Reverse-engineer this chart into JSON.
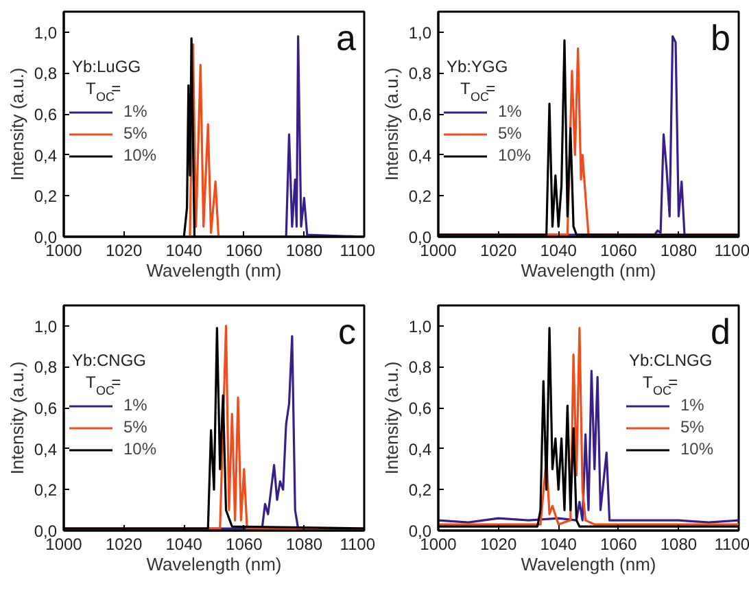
{
  "chart_data": [
    {
      "type": "line",
      "xlabel": "Wavelength (nm)",
      "ylabel": "Intensity (a.u.)",
      "legend_title": "Yb:LuGG\nT$_{OC}$=",
      "annotations": [
        "a"
      ],
      "legend": "left",
      "grid": false,
      "xlim": [
        1000,
        1100
      ],
      "xticks": [
        1000,
        1020,
        1040,
        1060,
        1080,
        1100
      ],
      "ylim": [
        0,
        1.1
      ],
      "yticks": [
        {
          "value": 0,
          "label": "0,0"
        },
        {
          "value": 0.2,
          "label": "0,2"
        },
        {
          "value": 0.4,
          "label": "0,4"
        },
        {
          "value": 0.6,
          "label": "0,6"
        },
        {
          "value": 0.8,
          "label": "0,8"
        },
        {
          "value": 1.0,
          "label": "1,0"
        }
      ],
      "series": [
        {
          "name": "1%",
          "color": "#3a1e8a",
          "x": [
            1000,
            1074,
            1075,
            1076,
            1077,
            1077.5,
            1078,
            1079,
            1080,
            1081,
            1100
          ],
          "values": [
            0,
            0,
            0.5,
            0.05,
            0.28,
            0.05,
            0.98,
            0.05,
            0.19,
            0.01,
            0
          ]
        },
        {
          "name": "5%",
          "color": "#f04d1c",
          "x": [
            1000,
            1042,
            1043,
            1044,
            1045.5,
            1046.5,
            1048,
            1049,
            1050.5,
            1051.5,
            1100
          ],
          "values": [
            0,
            0,
            0.94,
            0.05,
            0.84,
            0.05,
            0.55,
            0.02,
            0.27,
            0,
            0
          ]
        },
        {
          "name": "10%",
          "color": "#000000",
          "x": [
            1000,
            1040,
            1041,
            1041.5,
            1042,
            1042.5,
            1043.5,
            1100
          ],
          "values": [
            0,
            0,
            0.14,
            0.74,
            0.3,
            0.97,
            0,
            0
          ]
        }
      ]
    },
    {
      "type": "line",
      "xlabel": "Wavelength (nm)",
      "ylabel": "Intensity (a.u.)",
      "legend_title": "Yb:YGG\nT$_{OC}$=",
      "annotations": [
        "b"
      ],
      "legend": "left",
      "grid": false,
      "xlim": [
        1000,
        1100
      ],
      "xticks": [
        1000,
        1020,
        1040,
        1060,
        1080,
        1100
      ],
      "ylim": [
        0,
        1.1
      ],
      "yticks": [
        {
          "value": 0,
          "label": "0,0"
        },
        {
          "value": 0.2,
          "label": "0,2"
        },
        {
          "value": 0.4,
          "label": "0,4"
        },
        {
          "value": 0.6,
          "label": "0,6"
        },
        {
          "value": 0.8,
          "label": "0,8"
        },
        {
          "value": 1.0,
          "label": "1,0"
        }
      ],
      "series": [
        {
          "name": "1%",
          "color": "#3a1e8a",
          "x": [
            1000,
            1072,
            1073,
            1074,
            1075,
            1076,
            1077,
            1078,
            1079,
            1080,
            1081,
            1082,
            1100
          ],
          "values": [
            0.01,
            0.01,
            0.03,
            0.02,
            0.5,
            0.33,
            0.1,
            0.98,
            0.95,
            0.1,
            0.27,
            0,
            0
          ]
        },
        {
          "name": "5%",
          "color": "#f04d1c",
          "x": [
            1000,
            1043,
            1044.5,
            1045.5,
            1046.5,
            1047.5,
            1048,
            1049,
            1050,
            1100
          ],
          "values": [
            0.01,
            0.01,
            0.81,
            0.4,
            0.92,
            0.28,
            0.4,
            0.2,
            0.01,
            0.01
          ]
        },
        {
          "name": "10%",
          "color": "#000000",
          "x": [
            1000,
            1036,
            1037,
            1038,
            1039,
            1040,
            1041,
            1042,
            1043,
            1044,
            1045,
            1046,
            1100
          ],
          "values": [
            0.01,
            0.01,
            0.65,
            0.05,
            0.3,
            0.05,
            0.25,
            0.96,
            0.1,
            0.53,
            0.05,
            0.01,
            0.01
          ]
        }
      ]
    },
    {
      "type": "line",
      "xlabel": "Wavelength (nm)",
      "ylabel": "Intensity (a.u.)",
      "legend_title": "Yb:CNGG\nT$_{OC}$=",
      "annotations": [
        "c"
      ],
      "legend": "left",
      "grid": false,
      "xlim": [
        1000,
        1100
      ],
      "xticks": [
        1000,
        1020,
        1040,
        1060,
        1080,
        1100
      ],
      "ylim": [
        0,
        1.1
      ],
      "yticks": [
        {
          "value": 0,
          "label": "0,0"
        },
        {
          "value": 0.2,
          "label": "0,2"
        },
        {
          "value": 0.4,
          "label": "0,4"
        },
        {
          "value": 0.6,
          "label": "0,6"
        },
        {
          "value": 0.8,
          "label": "0,8"
        },
        {
          "value": 1.0,
          "label": "1,0"
        }
      ],
      "series": [
        {
          "name": "1%",
          "color": "#3a1e8a",
          "x": [
            1000,
            1066,
            1067,
            1068,
            1070,
            1071,
            1072,
            1073,
            1074,
            1075,
            1076,
            1077,
            1078,
            1100
          ],
          "values": [
            0.01,
            0.01,
            0.13,
            0.08,
            0.32,
            0.15,
            0.24,
            0.2,
            0.52,
            0.62,
            0.95,
            0.1,
            0.01,
            0.01
          ]
        },
        {
          "name": "5%",
          "color": "#f04d1c",
          "x": [
            1000,
            1052,
            1054,
            1055,
            1056,
            1057,
            1058,
            1059,
            1060,
            1061,
            1100
          ],
          "values": [
            0.01,
            0.01,
            1.0,
            0.1,
            0.57,
            0.05,
            0.65,
            0.05,
            0.3,
            0.01,
            0.01
          ]
        },
        {
          "name": "10%",
          "color": "#000000",
          "x": [
            1000,
            1048,
            1049,
            1050,
            1051,
            1052,
            1053,
            1054,
            1056,
            1100
          ],
          "values": [
            0.01,
            0.01,
            0.49,
            0.2,
            0.99,
            0.3,
            0.66,
            0.1,
            0.02,
            0.01
          ]
        }
      ]
    },
    {
      "type": "line",
      "xlabel": "Wavelength (nm)",
      "ylabel": "Intensity (a.u.)",
      "legend_title": "Yb:CLNGG\nT$_{OC}$=",
      "annotations": [
        "d"
      ],
      "legend": "right",
      "grid": false,
      "xlim": [
        1000,
        1100
      ],
      "xticks": [
        1000,
        1020,
        1040,
        1060,
        1080,
        1100
      ],
      "ylim": [
        0,
        1.1
      ],
      "yticks": [
        {
          "value": 0,
          "label": "0,0"
        },
        {
          "value": 0.2,
          "label": "0,2"
        },
        {
          "value": 0.4,
          "label": "0,4"
        },
        {
          "value": 0.6,
          "label": "0,6"
        },
        {
          "value": 0.8,
          "label": "0,8"
        },
        {
          "value": 1.0,
          "label": "1,0"
        }
      ],
      "series": [
        {
          "name": "1%",
          "color": "#3a1e8a",
          "x": [
            1000,
            1010,
            1020,
            1030,
            1040,
            1046,
            1047,
            1048,
            1049,
            1050,
            1051,
            1052,
            1053,
            1054,
            1056,
            1057,
            1070,
            1080,
            1090,
            1100
          ],
          "values": [
            0.05,
            0.04,
            0.06,
            0.05,
            0.06,
            0.05,
            0.14,
            0.05,
            0.47,
            0.1,
            0.78,
            0.3,
            0.75,
            0.1,
            0.38,
            0.05,
            0.05,
            0.05,
            0.04,
            0.05
          ]
        },
        {
          "name": "5%",
          "color": "#f04d1c",
          "x": [
            1000,
            1034,
            1036,
            1037,
            1038,
            1040,
            1044,
            1045,
            1046,
            1047,
            1048,
            1049,
            1052,
            1100
          ],
          "values": [
            0.03,
            0.03,
            0.35,
            0.08,
            0.12,
            0.03,
            0.05,
            0.86,
            0.27,
            0.99,
            0.2,
            0.05,
            0.03,
            0.03
          ]
        },
        {
          "name": "10%",
          "color": "#000000",
          "x": [
            1000,
            1033,
            1034,
            1035,
            1036,
            1037,
            1038,
            1039,
            1040,
            1041,
            1042,
            1043,
            1044,
            1045,
            1046,
            1047,
            1100
          ],
          "values": [
            0.02,
            0.02,
            0.1,
            0.73,
            0.2,
            0.99,
            0.3,
            0.45,
            0.2,
            0.45,
            0.1,
            0.61,
            0.1,
            0.5,
            0.05,
            0.02,
            0.02
          ]
        }
      ]
    }
  ]
}
